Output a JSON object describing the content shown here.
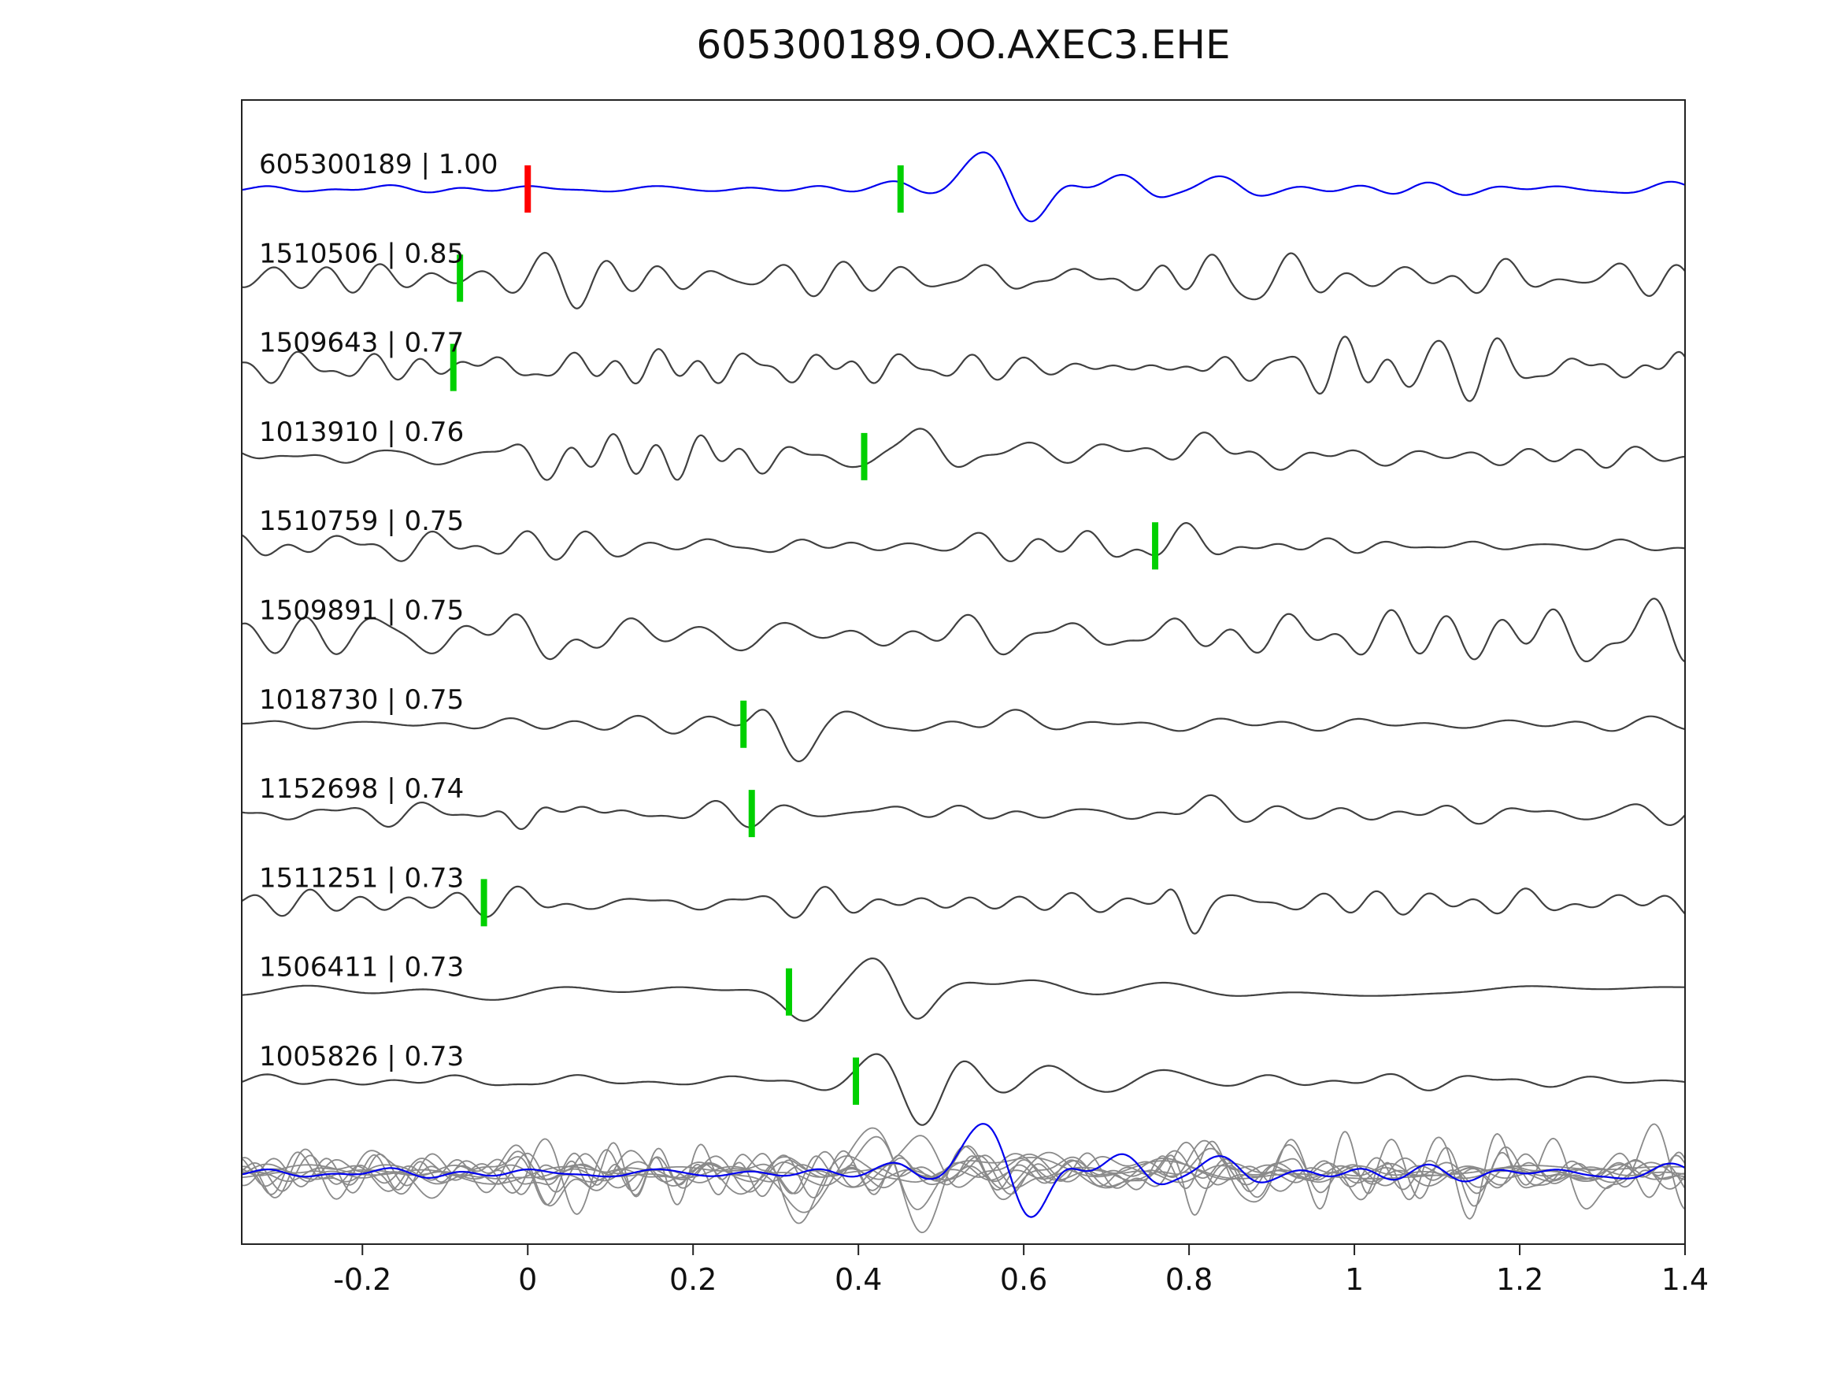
{
  "title": "605300189.OO.AXEC3.EHE",
  "colors": {
    "reference_trace": "#0000EE",
    "match_trace": "#404040",
    "overlay_gray": "#8A8A8A",
    "pick_green": "#00D000",
    "pick_red": "#FF0000",
    "axis": "#222222",
    "text": "#111111"
  },
  "chart_data": {
    "type": "line",
    "title": "605300189.OO.AXEC3.EHE",
    "xlabel": "",
    "ylabel": "",
    "xlim": [
      -0.346,
      1.4
    ],
    "grid": false,
    "legend": "none",
    "x_ticks": [
      -0.2,
      0,
      0.2,
      0.4,
      0.6,
      0.8,
      1,
      1.2,
      1.4
    ],
    "x_tick_labels": [
      "-0.2",
      "0",
      "0.2",
      "0.4",
      "0.6",
      "0.8",
      "1",
      "1.2",
      "1.4"
    ],
    "description": "Template waveform (blue, top) and ten cross-correlation matched waveforms (gray) with pick markers; all traces superimposed at bottom.",
    "traces": [
      {
        "id": "605300189",
        "score": "1.00",
        "label": "605300189 | 1.00",
        "role": "reference",
        "color": "#0000EE",
        "picks": [
          [
            0.0,
            "red"
          ],
          [
            0.451,
            "green"
          ]
        ],
        "synth": {
          "seed": 101,
          "noise_amp": 3.5,
          "band": [
            5,
            14
          ],
          "env": [
            [
              -0.35,
              0.5
            ],
            [
              0.3,
              0.6
            ],
            [
              0.45,
              1.0
            ],
            [
              0.65,
              1.4
            ],
            [
              1.4,
              1.1
            ]
          ],
          "packets": [
            [
              0.455,
              10,
              0.025,
              0,
              0
            ],
            [
              0.505,
              -7,
              0.022,
              0,
              0
            ],
            [
              0.555,
              48,
              0.033,
              0,
              0
            ],
            [
              0.606,
              -44,
              0.028,
              0,
              0
            ],
            [
              0.652,
              8,
              0.02,
              0,
              0
            ],
            [
              0.72,
              13,
              0.026,
              0,
              0
            ],
            [
              0.762,
              -7,
              0.02,
              0,
              0
            ],
            [
              0.832,
              12,
              0.028,
              0,
              0
            ],
            [
              0.877,
              -6,
              0.022,
              0,
              0
            ]
          ]
        }
      },
      {
        "id": "1510506",
        "score": "0.85",
        "label": "1510506 | 0.85",
        "role": "match",
        "color": "#404040",
        "picks": [
          [
            -0.082,
            "green"
          ]
        ],
        "synth": {
          "seed": 202,
          "noise_amp": 8,
          "band": [
            6,
            20
          ],
          "env": [
            [
              -0.35,
              0.8
            ],
            [
              -0.12,
              1.1
            ],
            [
              0.25,
              0.95
            ],
            [
              0.7,
              0.9
            ],
            [
              0.83,
              1.5
            ],
            [
              0.98,
              1.0
            ],
            [
              1.4,
              0.9
            ]
          ],
          "packets": [
            [
              0.015,
              16,
              0.05,
              11,
              0
            ],
            [
              0.055,
              -8,
              0.02,
              0,
              0
            ],
            [
              0.845,
              13,
              0.06,
              10,
              1.2
            ]
          ]
        }
      },
      {
        "id": "1509643",
        "score": "0.77",
        "label": "1509643 | 0.77",
        "role": "match",
        "color": "#404040",
        "picks": [
          [
            -0.09,
            "green"
          ]
        ],
        "synth": {
          "seed": 303,
          "noise_amp": 10.5,
          "band": [
            7,
            22
          ],
          "env": [
            [
              -0.35,
              0.95
            ],
            [
              0.5,
              0.9
            ],
            [
              0.88,
              1.15
            ],
            [
              1.05,
              1.5
            ],
            [
              1.4,
              1.45
            ]
          ],
          "packets": [
            [
              -0.055,
              12,
              0.05,
              9,
              0.6
            ],
            [
              0.985,
              12,
              0.05,
              12,
              0
            ]
          ]
        }
      },
      {
        "id": "1013910",
        "score": "0.76",
        "label": "1013910 | 0.76",
        "role": "match",
        "color": "#404040",
        "picks": [
          [
            0.407,
            "green"
          ]
        ],
        "synth": {
          "seed": 404,
          "noise_amp": 6.5,
          "band": [
            6,
            18
          ],
          "env": [
            [
              -0.35,
              0.85
            ],
            [
              1.4,
              0.9
            ]
          ],
          "packets": [
            [
              0.01,
              18,
              0.04,
              12,
              2.0
            ],
            [
              0.16,
              24,
              0.13,
              19,
              0.5
            ],
            [
              0.415,
              -20,
              0.022,
              0,
              0
            ],
            [
              0.465,
              38,
              0.032,
              0,
              0
            ],
            [
              0.52,
              -13,
              0.028,
              0,
              0
            ],
            [
              0.585,
              14,
              0.03,
              0,
              0
            ],
            [
              0.7,
              10,
              0.04,
              0,
              0
            ],
            [
              0.82,
              20,
              0.045,
              0,
              0
            ],
            [
              0.885,
              -9,
              0.03,
              0,
              0
            ]
          ]
        }
      },
      {
        "id": "1510759",
        "score": "0.75",
        "label": "1510759 | 0.75",
        "role": "match",
        "color": "#404040",
        "picks": [
          [
            0.759,
            "green"
          ]
        ],
        "synth": {
          "seed": 505,
          "noise_amp": 7.5,
          "band": [
            6,
            18
          ],
          "env": [
            [
              -0.35,
              0.9
            ],
            [
              0.1,
              1.0
            ],
            [
              0.5,
              0.85
            ],
            [
              0.76,
              1.25
            ],
            [
              0.95,
              1.0
            ],
            [
              1.4,
              0.85
            ]
          ],
          "packets": [
            [
              0.02,
              14,
              0.05,
              10,
              0.8
            ],
            [
              0.8,
              13,
              0.05,
              9,
              0
            ]
          ]
        }
      },
      {
        "id": "1509891",
        "score": "0.75",
        "label": "1509891 | 0.75",
        "role": "match",
        "color": "#404040",
        "picks": [],
        "synth": {
          "seed": 606,
          "noise_amp": 11.5,
          "band": [
            5,
            16
          ],
          "env": [
            [
              -0.35,
              0.8
            ],
            [
              0.0,
              1.05
            ],
            [
              0.9,
              1.1
            ],
            [
              1.12,
              1.4
            ],
            [
              1.4,
              1.3
            ]
          ],
          "packets": [
            [
              0.02,
              26,
              0.045,
              9,
              2.5
            ]
          ]
        }
      },
      {
        "id": "1018730",
        "score": "0.75",
        "label": "1018730 | 0.75",
        "role": "match",
        "color": "#404040",
        "picks": [
          [
            0.261,
            "green"
          ]
        ],
        "synth": {
          "seed": 707,
          "noise_amp": 5,
          "band": [
            5,
            14
          ],
          "env": [
            [
              -0.35,
              0.8
            ],
            [
              0.2,
              0.9
            ],
            [
              0.5,
              1.0
            ],
            [
              1.4,
              1.0
            ]
          ],
          "packets": [
            [
              0.285,
              22,
              0.022,
              0,
              0
            ],
            [
              0.327,
              -46,
              0.026,
              0,
              0
            ],
            [
              0.385,
              16,
              0.025,
              0,
              0
            ],
            [
              0.432,
              -7,
              0.02,
              0,
              0
            ],
            [
              0.555,
              -8,
              0.025,
              0,
              0
            ],
            [
              0.6,
              18,
              0.035,
              0,
              0
            ],
            [
              0.662,
              -7,
              0.03,
              0,
              0
            ]
          ]
        }
      },
      {
        "id": "1152698",
        "score": "0.74",
        "label": "1152698 | 0.74",
        "role": "match",
        "color": "#404040",
        "picks": [
          [
            0.271,
            "green"
          ]
        ],
        "synth": {
          "seed": 808,
          "noise_amp": 7,
          "band": [
            6,
            18
          ],
          "env": [
            [
              -0.35,
              0.85
            ],
            [
              0.35,
              0.9
            ],
            [
              1.4,
              0.9
            ]
          ],
          "packets": [
            [
              -0.005,
              28,
              0.035,
              13,
              3.5
            ],
            [
              0.07,
              10,
              0.03,
              10,
              0
            ],
            [
              0.45,
              8,
              0.03,
              0,
              0
            ],
            [
              0.82,
              16,
              0.04,
              7,
              0
            ],
            [
              0.905,
              8,
              0.04,
              9,
              1
            ]
          ]
        }
      },
      {
        "id": "1511251",
        "score": "0.73",
        "label": "1511251 | 0.73",
        "role": "match",
        "color": "#404040",
        "picks": [
          [
            -0.053,
            "green"
          ]
        ],
        "synth": {
          "seed": 909,
          "noise_amp": 8,
          "band": [
            6,
            18
          ],
          "env": [
            [
              -0.35,
              0.9
            ],
            [
              0.85,
              0.9
            ],
            [
              1.02,
              1.15
            ],
            [
              1.4,
              1.1
            ]
          ],
          "packets": [
            [
              0.0,
              20,
              0.05,
              11,
              1.0
            ],
            [
              0.778,
              10,
              0.012,
              0,
              0
            ],
            [
              0.805,
              -32,
              0.014,
              0,
              0
            ],
            [
              0.832,
              8,
              0.015,
              0,
              0
            ]
          ]
        }
      },
      {
        "id": "1506411",
        "score": "0.73",
        "label": "1506411 | 0.73",
        "role": "match",
        "color": "#404040",
        "picks": [
          [
            0.316,
            "green"
          ]
        ],
        "synth": {
          "seed": 1010,
          "noise_amp": 5,
          "band": [
            2.5,
            7
          ],
          "env": [
            [
              -0.35,
              0.85
            ],
            [
              1.4,
              1.0
            ]
          ],
          "packets": [
            [
              0.27,
              10,
              0.04,
              0,
              0
            ],
            [
              0.335,
              -38,
              0.032,
              0,
              0
            ],
            [
              0.42,
              46,
              0.036,
              0,
              0
            ],
            [
              0.468,
              -42,
              0.028,
              0,
              0
            ],
            [
              0.53,
              8,
              0.03,
              0,
              0
            ],
            [
              0.62,
              14,
              0.05,
              0,
              0
            ],
            [
              0.78,
              8,
              0.06,
              0,
              0
            ],
            [
              0.95,
              -10,
              0.07,
              0,
              0
            ],
            [
              1.1,
              6,
              0.06,
              0,
              0
            ],
            [
              1.38,
              14,
              0.06,
              0,
              0
            ]
          ]
        }
      },
      {
        "id": "1005826",
        "score": "0.73",
        "label": "1005826 | 0.73",
        "role": "match",
        "color": "#404040",
        "picks": [
          [
            0.397,
            "green"
          ]
        ],
        "synth": {
          "seed": 1111,
          "noise_amp": 5,
          "band": [
            5,
            14
          ],
          "env": [
            [
              -0.35,
              0.8
            ],
            [
              0.3,
              0.9
            ],
            [
              1.4,
              0.9
            ]
          ],
          "packets": [
            [
              0.43,
              24,
              0.028,
              0,
              0
            ],
            [
              0.477,
              -48,
              0.028,
              0,
              0
            ],
            [
              0.525,
              22,
              0.025,
              0,
              0
            ],
            [
              0.572,
              -10,
              0.025,
              0,
              0
            ],
            [
              0.635,
              13,
              0.03,
              0,
              0
            ],
            [
              0.702,
              -8,
              0.03,
              0,
              0
            ],
            [
              0.78,
              8,
              0.04,
              0,
              0
            ]
          ]
        }
      }
    ],
    "overlay": {
      "description": "All traces superimposed on a single baseline at the bottom; matches in gray, reference in blue.",
      "gray": "#8A8A8A",
      "blue": "#0000EE",
      "scale": 1.35
    }
  }
}
